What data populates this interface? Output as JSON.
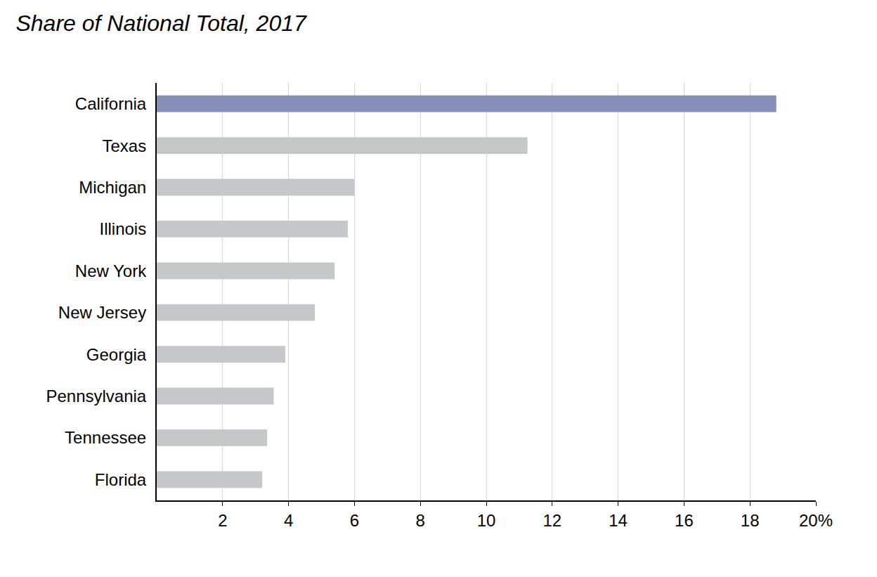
{
  "chart_data": {
    "type": "bar",
    "title": "Share of National Total, 2017",
    "orientation": "horizontal",
    "categories": [
      "California",
      "Texas",
      "Michigan",
      "Illinois",
      "New York",
      "New Jersey",
      "Georgia",
      "Pennsylvania",
      "Tennessee",
      "Florida"
    ],
    "values": [
      18.8,
      11.25,
      6.0,
      5.8,
      5.4,
      4.8,
      3.9,
      3.55,
      3.35,
      3.2
    ],
    "colors": [
      "#8590b9",
      "#c6c7c9",
      "#c6c7c9",
      "#c6c7c9",
      "#c6c7c9",
      "#c6c7c9",
      "#c6c7c9",
      "#c6c7c9",
      "#c6c7c9",
      "#c6c7c9"
    ],
    "xlim": [
      0,
      20
    ],
    "xticks": [
      2,
      4,
      6,
      8,
      10,
      12,
      14,
      16,
      18,
      {
        "value": 20,
        "label": "20%"
      }
    ],
    "grid": true
  }
}
